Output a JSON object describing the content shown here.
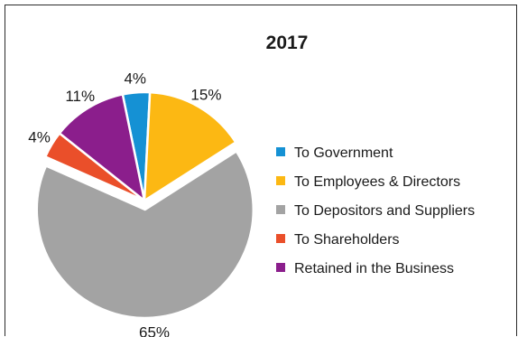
{
  "chart_data": {
    "type": "pie",
    "title": "2017",
    "legend_position": "right",
    "slices": [
      {
        "label": "To Government",
        "value": 4,
        "display": "4%",
        "color": "#1591d4"
      },
      {
        "label": "To Employees & Directors",
        "value": 15,
        "display": "15%",
        "color": "#fcb813"
      },
      {
        "label": "To Depositors and Suppliers",
        "value": 65,
        "display": "65%",
        "color": "#a3a3a3"
      },
      {
        "label": "To Shareholders",
        "value": 4,
        "display": "4%",
        "color": "#ea4f2a"
      },
      {
        "label": "Retained in the Business",
        "value": 11,
        "display": "11%",
        "color": "#8b1e8c"
      }
    ],
    "exploded_slice": "To Depositors and Suppliers"
  }
}
